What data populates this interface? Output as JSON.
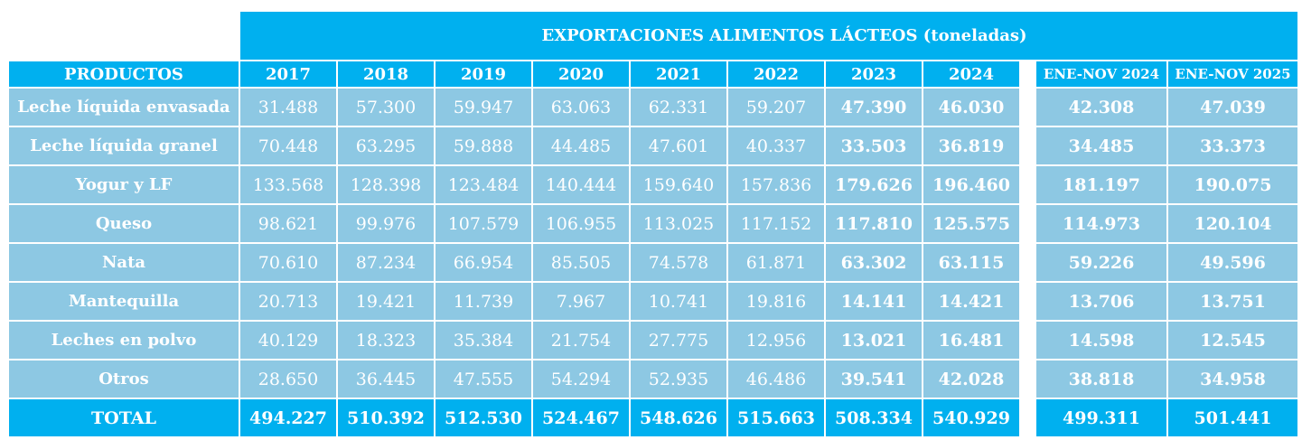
{
  "title": "EXPORTACIONES ALIMENTOS LÁCTEOS (toneladas)",
  "colors": {
    "header": "#00B0EF",
    "body": "#8DC8E3",
    "text": "#FFFFFF"
  },
  "columns": [
    "PRODUCTOS",
    "2017",
    "2018",
    "2019",
    "2020",
    "2021",
    "2022",
    "2023",
    "2024",
    "ENE-NOV 2024",
    "ENE-NOV 2025"
  ],
  "rows": [
    {
      "product": "Leche líquida envasada",
      "values": [
        "31.488",
        "57.300",
        "59.947",
        "63.063",
        "62.331",
        "59.207",
        "47.390",
        "46.030",
        "42.308",
        "47.039"
      ]
    },
    {
      "product": "Leche líquida granel",
      "values": [
        "70.448",
        "63.295",
        "59.888",
        "44.485",
        "47.601",
        "40.337",
        "33.503",
        "36.819",
        "34.485",
        "33.373"
      ]
    },
    {
      "product": "Yogur y LF",
      "values": [
        "133.568",
        "128.398",
        "123.484",
        "140.444",
        "159.640",
        "157.836",
        "179.626",
        "196.460",
        "181.197",
        "190.075"
      ]
    },
    {
      "product": "Queso",
      "values": [
        "98.621",
        "99.976",
        "107.579",
        "106.955",
        "113.025",
        "117.152",
        "117.810",
        "125.575",
        "114.973",
        "120.104"
      ]
    },
    {
      "product": "Nata",
      "values": [
        "70.610",
        "87.234",
        "66.954",
        "85.505",
        "74.578",
        "61.871",
        "63.302",
        "63.115",
        "59.226",
        "49.596"
      ]
    },
    {
      "product": "Mantequilla",
      "values": [
        "20.713",
        "19.421",
        "11.739",
        "7.967",
        "10.741",
        "19.816",
        "14.141",
        "14.421",
        "13.706",
        "13.751"
      ]
    },
    {
      "product": "Leches en polvo",
      "values": [
        "40.129",
        "18.323",
        "35.384",
        "21.754",
        "27.775",
        "12.956",
        "13.021",
        "16.481",
        "14.598",
        "12.545"
      ]
    },
    {
      "product": "Otros",
      "values": [
        "28.650",
        "36.445",
        "47.555",
        "54.294",
        "52.935",
        "46.486",
        "39.541",
        "42.028",
        "38.818",
        "34.958"
      ]
    }
  ],
  "total": {
    "label": "TOTAL",
    "values": [
      "494.227",
      "510.392",
      "512.530",
      "524.467",
      "548.626",
      "515.663",
      "508.334",
      "540.929",
      "499.311",
      "501.441"
    ]
  }
}
